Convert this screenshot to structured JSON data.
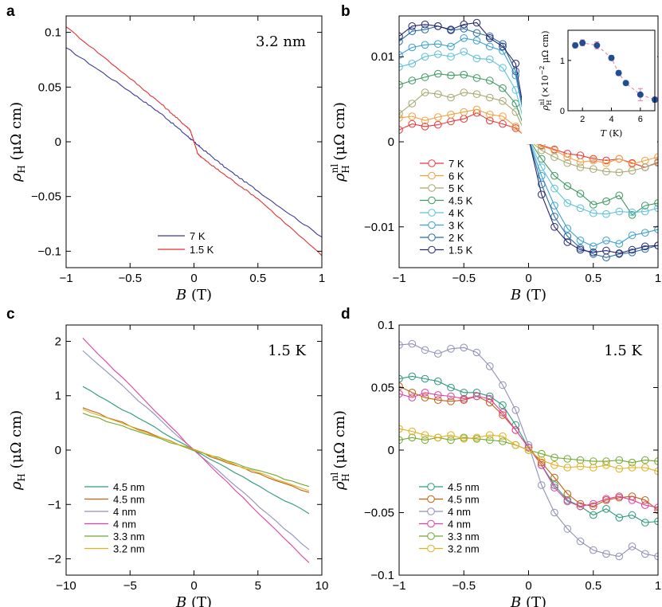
{
  "chart_data": [
    {
      "id": "a",
      "panel_label": "a",
      "type": "line",
      "annotation": "3.2 nm",
      "xlabel_var": "B",
      "xlabel_unit": "(T)",
      "ylabel_var": "ρ",
      "ylabel_sub": "H",
      "ylabel_unit": "(μΩ cm)",
      "xlim": [
        -1,
        1
      ],
      "ylim": [
        -0.115,
        0.115
      ],
      "xticks": [
        -1,
        -0.5,
        0,
        0.5,
        1
      ],
      "xtick_labels": [
        "−1",
        "−0.5",
        "0",
        "0.5",
        "1"
      ],
      "yticks": [
        -0.1,
        -0.05,
        0,
        0.05,
        0.1
      ],
      "ytick_labels": [
        "−0.1",
        "−0.05",
        "0",
        "0.05",
        "0.1"
      ],
      "series": [
        {
          "name": "7  K",
          "color": "#3b3b9a",
          "x": [
            -1,
            -0.5,
            -0.25,
            -0.05,
            0,
            0.05,
            0.25,
            0.5,
            1
          ],
          "y": [
            0.086,
            0.046,
            0.025,
            0.005,
            0,
            -0.005,
            -0.024,
            -0.045,
            -0.087
          ]
        },
        {
          "name": "1.5 K",
          "color": "#e03030",
          "x": [
            -1,
            -0.5,
            -0.25,
            -0.1,
            -0.03,
            0,
            0.03,
            0.1,
            0.25,
            0.5,
            1
          ],
          "y": [
            0.105,
            0.058,
            0.034,
            0.018,
            0.011,
            0.0,
            -0.011,
            -0.018,
            -0.031,
            -0.052,
            -0.104
          ]
        }
      ]
    },
    {
      "id": "b",
      "panel_label": "b",
      "type": "line",
      "xlabel_var": "B",
      "xlabel_unit": "(T)",
      "ylabel_var": "ρ",
      "ylabel_sub": "H",
      "ylabel_sup": "nl",
      "ylabel_unit": "(μΩ cm)",
      "xlim": [
        -1,
        1
      ],
      "ylim": [
        -0.0148,
        0.0148
      ],
      "xticks": [
        -1,
        -0.5,
        0,
        0.5,
        1
      ],
      "xtick_labels": [
        "−1",
        "−0.5",
        "0",
        "0.5",
        "1"
      ],
      "yticks": [
        -0.01,
        0,
        0.01
      ],
      "ytick_labels": [
        "−0.01",
        "0",
        "0.01"
      ],
      "x": [
        -1,
        -0.9,
        -0.8,
        -0.7,
        -0.6,
        -0.5,
        -0.4,
        -0.3,
        -0.2,
        -0.1,
        0,
        0.1,
        0.2,
        0.3,
        0.4,
        0.5,
        0.6,
        0.7,
        0.8,
        0.9,
        1
      ],
      "series": [
        {
          "name": "7   K",
          "color": "#e8373c",
          "values": [
            0.0014,
            0.0021,
            0.0018,
            0.002,
            0.0024,
            0.0027,
            0.0034,
            0.0025,
            0.0021,
            0.0016,
            0.0003,
            -0.0004,
            -0.0009,
            -0.0014,
            -0.0016,
            -0.002,
            -0.0022,
            -0.002,
            -0.0025,
            -0.003,
            -0.0024
          ]
        },
        {
          "name": "6   K",
          "color": "#f0a040",
          "values": [
            0.0028,
            0.003,
            0.0025,
            0.0029,
            0.0032,
            0.0035,
            0.0038,
            0.0032,
            0.003,
            0.0018,
            0.0001,
            -0.0005,
            -0.001,
            -0.0018,
            -0.0024,
            -0.0022,
            -0.0025,
            -0.002,
            -0.0026,
            -0.0022,
            -0.0018
          ]
        },
        {
          "name": "5   K",
          "color": "#a8a870",
          "values": [
            0.0033,
            0.0045,
            0.0058,
            0.0056,
            0.0052,
            0.0058,
            0.0056,
            0.0052,
            0.0048,
            0.0035,
            0.0002,
            -0.001,
            -0.0018,
            -0.0025,
            -0.003,
            -0.0032,
            -0.0035,
            -0.0036,
            -0.0034,
            -0.003,
            -0.0025
          ]
        },
        {
          "name": "4.5 K",
          "color": "#3a9a60",
          "values": [
            0.0067,
            0.0072,
            0.0076,
            0.008,
            0.0078,
            0.0079,
            0.0075,
            0.0072,
            0.0063,
            0.0045,
            0.0003,
            -0.002,
            -0.004,
            -0.0052,
            -0.0061,
            -0.0074,
            -0.007,
            -0.0063,
            -0.0086,
            -0.0075,
            -0.0072
          ]
        },
        {
          "name": "4   K",
          "color": "#5cc0d8",
          "values": [
            0.0088,
            0.0092,
            0.01,
            0.0103,
            0.01,
            0.0106,
            0.0098,
            0.0097,
            0.0087,
            0.0061,
            0.0003,
            -0.003,
            -0.0055,
            -0.0072,
            -0.0078,
            -0.0084,
            -0.0085,
            -0.0082,
            -0.0083,
            -0.0082,
            -0.0078
          ]
        },
        {
          "name": "3   K",
          "color": "#38a0d0",
          "values": [
            0.0102,
            0.0111,
            0.0114,
            0.0115,
            0.0112,
            0.0122,
            0.0119,
            0.0112,
            0.0107,
            0.0078,
            0.0003,
            -0.004,
            -0.0075,
            -0.0102,
            -0.0116,
            -0.0123,
            -0.0116,
            -0.012,
            -0.011,
            -0.0107,
            -0.0103
          ]
        },
        {
          "name": "2   K",
          "color": "#2a6aa8",
          "values": [
            0.0118,
            0.013,
            0.0132,
            0.0136,
            0.0131,
            0.0133,
            0.0128,
            0.0124,
            0.0115,
            0.0083,
            0.0003,
            -0.005,
            -0.0088,
            -0.0111,
            -0.0125,
            -0.0132,
            -0.0136,
            -0.0132,
            -0.013,
            -0.0126,
            -0.0122
          ]
        },
        {
          "name": "1.5 K",
          "color": "#28286e",
          "values": [
            0.0124,
            0.0136,
            0.0138,
            0.0136,
            0.0132,
            0.0138,
            0.014,
            0.0122,
            0.0112,
            0.0092,
            0.0004,
            -0.0062,
            -0.01,
            -0.0118,
            -0.0127,
            -0.013,
            -0.0128,
            -0.0131,
            -0.0127,
            -0.0123,
            -0.0122
          ]
        }
      ],
      "inset": {
        "type": "scatter",
        "xlabel_var": "T",
        "xlabel_unit": "(K)",
        "ylabel_var": "ρ",
        "ylabel_sub": "H",
        "ylabel_sup": "nl",
        "ylabel_unit": "(×10",
        "ylabel_exp": "−2",
        "ylabel_unit2": " μΩ cm)",
        "xlim": [
          1,
          7
        ],
        "ylim": [
          0,
          1.6
        ],
        "xticks": [
          2,
          4,
          6
        ],
        "xtick_labels": [
          "2",
          "4",
          "6"
        ],
        "yticks": [
          0,
          1
        ],
        "ytick_labels": [
          "0",
          "1"
        ],
        "x": [
          1.5,
          2,
          3,
          4,
          4.5,
          5,
          6,
          7
        ],
        "y": [
          1.3,
          1.35,
          1.3,
          1.05,
          0.75,
          0.55,
          0.32,
          0.22
        ],
        "err": [
          0.05,
          0.06,
          0.07,
          0.05,
          0.05,
          0.04,
          0.12,
          0.05
        ],
        "point_color": "#1f4e96",
        "line_color": "#e87aa0"
      }
    },
    {
      "id": "c",
      "panel_label": "c",
      "type": "line",
      "annotation": "1.5 K",
      "xlabel_var": "B",
      "xlabel_unit": "(T)",
      "ylabel_var": "ρ",
      "ylabel_sub": "H",
      "ylabel_unit": "(μΩ cm)",
      "xlim": [
        -10,
        10
      ],
      "ylim": [
        -2.3,
        2.3
      ],
      "xticks": [
        -10,
        -5,
        0,
        5,
        10
      ],
      "xtick_labels": [
        "−10",
        "−5",
        "0",
        "5",
        "10"
      ],
      "yticks": [
        -2,
        -1,
        0,
        1,
        2
      ],
      "ytick_labels": [
        "−2",
        "−1",
        "0",
        "1",
        "2"
      ],
      "series": [
        {
          "name": "4.5 nm",
          "color": "#2a9a7a",
          "x": [
            -8.7,
            0,
            9
          ],
          "y": [
            1.17,
            0,
            -1.17
          ]
        },
        {
          "name": "4.5 nm",
          "color": "#c06010",
          "x": [
            -8.7,
            0,
            9
          ],
          "y": [
            0.78,
            0,
            -0.78
          ]
        },
        {
          "name": "4   nm",
          "color": "#9090b8",
          "x": [
            -8.7,
            0,
            9
          ],
          "y": [
            1.83,
            0,
            -1.83
          ]
        },
        {
          "name": "4   nm",
          "color": "#e040a0",
          "x": [
            -8.7,
            0,
            9
          ],
          "y": [
            2.06,
            0,
            -2.07
          ]
        },
        {
          "name": "3.3 nm",
          "color": "#70a830",
          "x": [
            -8.7,
            0,
            9
          ],
          "y": [
            0.68,
            0,
            -0.67
          ]
        },
        {
          "name": "3.2 nm",
          "color": "#e0b020",
          "x": [
            -8.7,
            0,
            9
          ],
          "y": [
            0.75,
            0,
            -0.75
          ]
        }
      ]
    },
    {
      "id": "d",
      "panel_label": "d",
      "type": "line",
      "annotation": "1.5 K",
      "xlabel_var": "B",
      "xlabel_unit": "(T)",
      "ylabel_var": "ρ",
      "ylabel_sub": "H",
      "ylabel_sup": "nl",
      "ylabel_unit": "(μΩ cm)",
      "xlim": [
        -1,
        1
      ],
      "ylim": [
        -0.1,
        0.1
      ],
      "xticks": [
        -1,
        -0.5,
        0,
        0.5,
        1
      ],
      "xtick_labels": [
        "−1",
        "−0.5",
        "0",
        "0.5",
        "1"
      ],
      "yticks": [
        -0.1,
        -0.05,
        0,
        0.05,
        0.1
      ],
      "ytick_labels": [
        "−0.1",
        "−0.05",
        "0",
        "0.05",
        "0.1"
      ],
      "x": [
        -1,
        -0.9,
        -0.8,
        -0.7,
        -0.6,
        -0.5,
        -0.4,
        -0.3,
        -0.2,
        -0.1,
        0,
        0.1,
        0.2,
        0.3,
        0.4,
        0.5,
        0.6,
        0.7,
        0.8,
        0.9,
        1
      ],
      "series": [
        {
          "name": "4.5 nm",
          "color": "#2a9a7a",
          "values": [
            0.057,
            0.059,
            0.057,
            0.055,
            0.05,
            0.046,
            0.046,
            0.043,
            0.036,
            0.02,
            0.002,
            -0.012,
            -0.028,
            -0.04,
            -0.045,
            -0.052,
            -0.047,
            -0.054,
            -0.052,
            -0.058,
            -0.057
          ]
        },
        {
          "name": "4.5 nm",
          "color": "#c06010",
          "values": [
            0.051,
            0.046,
            0.042,
            0.04,
            0.039,
            0.04,
            0.043,
            0.038,
            0.028,
            0.016,
            0.002,
            -0.01,
            -0.022,
            -0.035,
            -0.043,
            -0.045,
            -0.04,
            -0.038,
            -0.037,
            -0.04,
            -0.048
          ]
        },
        {
          "name": "4   nm",
          "color": "#9090b8",
          "values": [
            0.084,
            0.085,
            0.08,
            0.077,
            0.081,
            0.082,
            0.078,
            0.067,
            0.052,
            0.032,
            0.004,
            -0.028,
            -0.05,
            -0.063,
            -0.073,
            -0.08,
            -0.083,
            -0.085,
            -0.077,
            -0.083,
            -0.085
          ]
        },
        {
          "name": "4   nm",
          "color": "#e040a0",
          "values": [
            0.045,
            0.042,
            0.046,
            0.044,
            0.043,
            0.041,
            0.043,
            0.041,
            0.03,
            0.016,
            0.002,
            -0.012,
            -0.03,
            -0.041,
            -0.045,
            -0.043,
            -0.039,
            -0.037,
            -0.04,
            -0.044,
            -0.046
          ]
        },
        {
          "name": "3.3 nm",
          "color": "#70a830",
          "values": [
            0.008,
            0.01,
            0.008,
            0.01,
            0.008,
            0.01,
            0.009,
            0.008,
            0.007,
            0.004,
            0.0,
            -0.003,
            -0.006,
            -0.007,
            -0.008,
            -0.009,
            -0.009,
            -0.008,
            -0.01,
            -0.008,
            -0.009
          ]
        },
        {
          "name": "3.2 nm",
          "color": "#e0b020",
          "values": [
            0.017,
            0.015,
            0.012,
            0.01,
            0.012,
            0.009,
            0.01,
            0.012,
            0.011,
            0.004,
            0.0,
            -0.008,
            -0.012,
            -0.014,
            -0.013,
            -0.014,
            -0.012,
            -0.015,
            -0.014,
            -0.014,
            -0.017
          ]
        }
      ]
    }
  ]
}
